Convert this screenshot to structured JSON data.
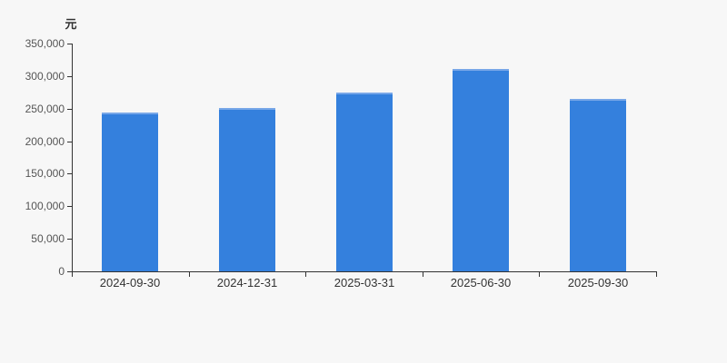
{
  "chart_data": {
    "type": "bar",
    "title": "",
    "xlabel": "",
    "ylabel": "元",
    "categories": [
      "2024-09-30",
      "2024-12-31",
      "2025-03-31",
      "2025-06-30",
      "2025-09-30"
    ],
    "values": [
      244000,
      251000,
      275000,
      311000,
      265000
    ],
    "ylim": [
      0,
      350000
    ],
    "ytick_interval": 50000,
    "ytick_labels": [
      "0",
      "50,000",
      "100,000",
      "150,000",
      "200,000",
      "250,000",
      "300,000",
      "350,000"
    ],
    "grid": false,
    "legend": "none",
    "colors": {
      "bar": "#3480dd",
      "bar_top_edge": "#78a7e8",
      "axis": "#333333",
      "ytick_label": "#555555",
      "category_label": "#333333",
      "background": "#f7f7f7"
    }
  }
}
